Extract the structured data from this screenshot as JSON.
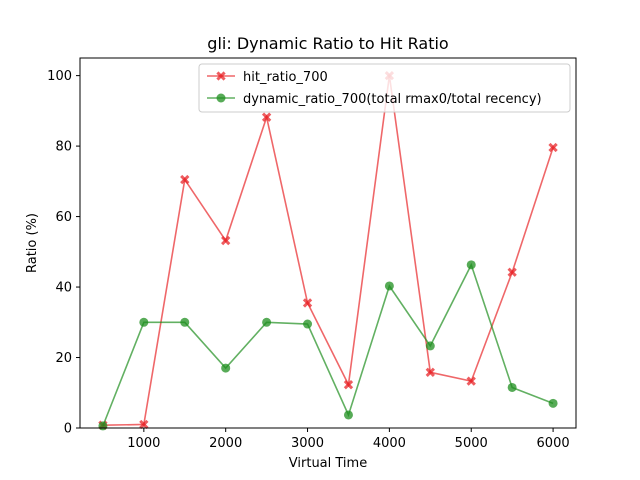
{
  "chart_data": {
    "type": "line",
    "title": "gli: Dynamic Ratio to Hit Ratio",
    "xlabel": "Virtual Time",
    "ylabel": "Ratio (%)",
    "xlim": [
      220,
      6280
    ],
    "ylim": [
      0,
      105
    ],
    "x_ticks": [
      1000,
      2000,
      3000,
      4000,
      5000,
      6000
    ],
    "y_ticks": [
      0,
      20,
      40,
      60,
      80,
      100
    ],
    "grid": false,
    "legend_position": "top-center",
    "x": [
      500,
      1000,
      1500,
      2000,
      2500,
      3000,
      3500,
      4000,
      4500,
      5000,
      5500,
      6000
    ],
    "series": [
      {
        "name": "hit_ratio_700",
        "color": "#e8262a",
        "marker": "x",
        "values": [
          0.8,
          1.0,
          70.5,
          53.2,
          88.2,
          35.5,
          12.3,
          100.0,
          15.8,
          13.3,
          44.2,
          79.6
        ]
      },
      {
        "name": "dynamic_ratio_700(total rmax0/total recency)",
        "color": "#1f8f1f",
        "marker": "o",
        "values": [
          0.6,
          30.0,
          30.0,
          17.0,
          30.0,
          29.5,
          3.7,
          40.3,
          23.3,
          46.3,
          11.5,
          7.0
        ]
      }
    ]
  }
}
